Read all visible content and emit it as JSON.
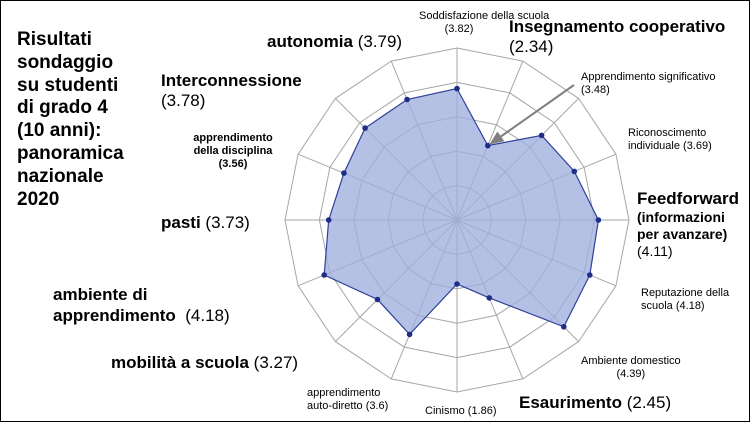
{
  "title": "Risultati\nsondaggio\nsu studenti\ndi grado 4\n(10 anni):\npanoramica\nnazionale\n2020",
  "chart_data": {
    "type": "radar",
    "rlim": [
      0,
      5
    ],
    "grid": true,
    "fill_color": "#9FB0DC",
    "line_color": "#2E3F9A",
    "annotation": "arrow pointing to Insegnamento cooperativo",
    "axes": [
      {
        "name": "Soddisfazione della scuola",
        "value": 3.82,
        "value_label": "(3.82)"
      },
      {
        "name": "Insegnamento cooperativo",
        "value": 2.34,
        "value_label": "(2.34)"
      },
      {
        "name": "Apprendimento significativo",
        "value": 3.48,
        "value_label": "(3.48)"
      },
      {
        "name": "Riconoscimento individuale",
        "value": 3.69,
        "value_label": "(3.69)"
      },
      {
        "name": "Feedforward",
        "subtitle": "(informazioni per avanzare)",
        "value": 4.11,
        "value_label": "(4.11)"
      },
      {
        "name": "Reputazione della scuola",
        "value": 4.18,
        "value_label": "(4.18)"
      },
      {
        "name": "Ambiente domestico",
        "value": 4.39,
        "value_label": "(4.39)"
      },
      {
        "name": "Esaurimento",
        "value": 2.45,
        "value_label": "(2.45)"
      },
      {
        "name": "Cinismo",
        "value": 1.86,
        "value_label": "(1.86)"
      },
      {
        "name": "apprendimento auto-diretto",
        "value": 3.6,
        "value_label": "(3.6)"
      },
      {
        "name": "mobilità a scuola",
        "value": 3.27,
        "value_label": "(3.27)"
      },
      {
        "name": "ambiente di apprendimento",
        "value": 4.18,
        "value_label": "(4.18)"
      },
      {
        "name": "pasti",
        "value": 3.73,
        "value_label": "(3.73)"
      },
      {
        "name": "apprendimento della disciplina",
        "value": 3.56,
        "value_label": "(3.56)"
      },
      {
        "name": "Interconnessione",
        "value": 3.78,
        "value_label": "(3.78)"
      },
      {
        "name": "autonomia",
        "value": 3.79,
        "value_label": "(3.79)"
      }
    ]
  }
}
